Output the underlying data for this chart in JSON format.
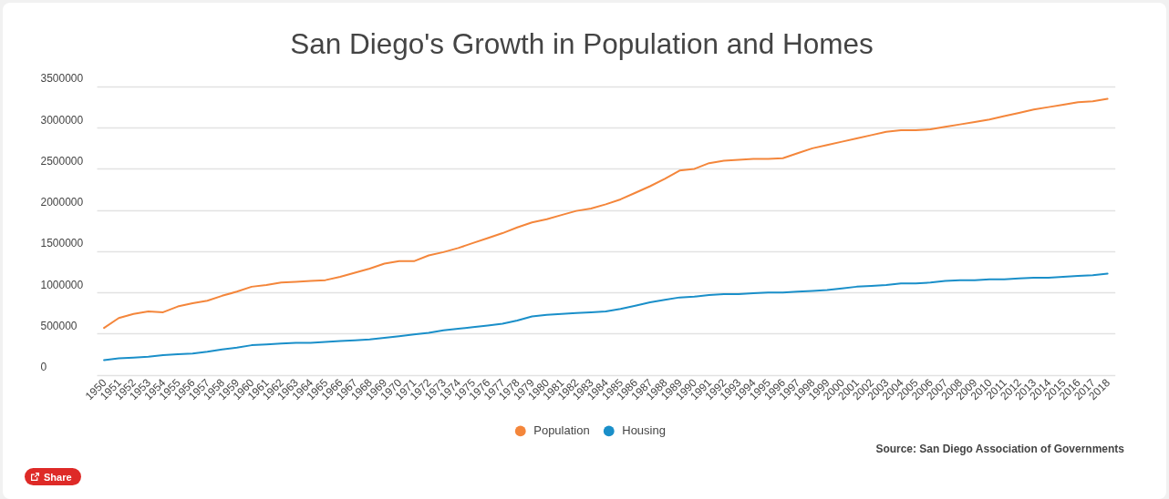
{
  "chart_data": {
    "type": "line",
    "title": "San Diego's Growth in Population and Homes",
    "categories": [
      "1950",
      "1951",
      "1952",
      "1953",
      "1954",
      "1955",
      "1956",
      "1957",
      "1958",
      "1959",
      "1960",
      "1961",
      "1962",
      "1963",
      "1964",
      "1965",
      "1966",
      "1967",
      "1968",
      "1969",
      "1970",
      "1971",
      "1972",
      "1973",
      "1974",
      "1975",
      "1976",
      "1977",
      "1978",
      "1979",
      "1980",
      "1981",
      "1982",
      "1983",
      "1984",
      "1985",
      "1986",
      "1987",
      "1988",
      "1989",
      "1990",
      "1991",
      "1992",
      "1993",
      "1994",
      "1995",
      "1996",
      "1997",
      "1998",
      "1999",
      "2000",
      "2001",
      "2002",
      "2003",
      "2004",
      "2005",
      "2006",
      "2007",
      "2008",
      "2009",
      "2010",
      "2011",
      "2012",
      "2013",
      "2014",
      "2015",
      "2016",
      "2017",
      "2018"
    ],
    "series": [
      {
        "name": "Population",
        "color": "#f4863b",
        "values": [
          570000,
          690000,
          740000,
          770000,
          760000,
          830000,
          870000,
          900000,
          960000,
          1010000,
          1070000,
          1090000,
          1120000,
          1130000,
          1140000,
          1150000,
          1190000,
          1240000,
          1290000,
          1350000,
          1380000,
          1380000,
          1450000,
          1490000,
          1540000,
          1600000,
          1660000,
          1720000,
          1790000,
          1850000,
          1890000,
          1940000,
          1990000,
          2020000,
          2070000,
          2130000,
          2210000,
          2290000,
          2380000,
          2480000,
          2500000,
          2570000,
          2600000,
          2610000,
          2620000,
          2620000,
          2630000,
          2690000,
          2750000,
          2790000,
          2830000,
          2870000,
          2910000,
          2950000,
          2970000,
          2970000,
          2980000,
          3010000,
          3040000,
          3070000,
          3100000,
          3140000,
          3180000,
          3220000,
          3250000,
          3280000,
          3310000,
          3320000,
          3350000
        ]
      },
      {
        "name": "Housing",
        "color": "#1a8fc9",
        "values": [
          180000,
          200000,
          210000,
          220000,
          240000,
          250000,
          260000,
          280000,
          310000,
          330000,
          360000,
          370000,
          380000,
          390000,
          390000,
          400000,
          410000,
          420000,
          430000,
          450000,
          470000,
          490000,
          510000,
          540000,
          560000,
          580000,
          600000,
          620000,
          660000,
          710000,
          730000,
          740000,
          750000,
          760000,
          770000,
          800000,
          840000,
          880000,
          910000,
          940000,
          950000,
          970000,
          980000,
          980000,
          990000,
          1000000,
          1000000,
          1010000,
          1020000,
          1030000,
          1050000,
          1070000,
          1080000,
          1090000,
          1110000,
          1110000,
          1120000,
          1140000,
          1150000,
          1150000,
          1160000,
          1160000,
          1170000,
          1180000,
          1180000,
          1190000,
          1200000,
          1210000,
          1230000
        ]
      }
    ],
    "ylim": [
      0,
      3500000
    ],
    "yticks": [
      0,
      500000,
      1000000,
      1500000,
      2000000,
      2500000,
      3000000,
      3500000
    ],
    "grid": "y",
    "legend": "bottom",
    "annotations": [
      "Source: San Diego Association of Governments",
      "Share"
    ]
  }
}
